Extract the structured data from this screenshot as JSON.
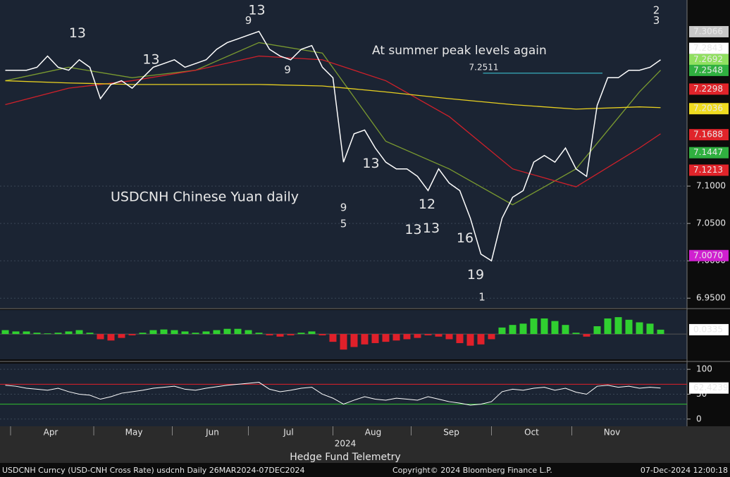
{
  "chart_data": [
    {
      "type": "line",
      "caption": "USDCNH Chinese Yuan daily",
      "note": "At summer peak levels again",
      "xlim": [
        -0.5,
        64.5
      ],
      "ylim": [
        6.937,
        7.349
      ],
      "yticks": [
        {
          "value": 6.95,
          "label": "6.9500"
        },
        {
          "value": 7.0,
          "label": "7.0000"
        },
        {
          "value": 7.05,
          "label": "7.0500"
        },
        {
          "value": 7.1,
          "label": "7.1000"
        }
      ],
      "grid": true,
      "series": [
        {
          "color": "#ffffff",
          "x": [
            0,
            1,
            2,
            3,
            4,
            5,
            6,
            7,
            8,
            9,
            10,
            11,
            12,
            13,
            14,
            15,
            16,
            17,
            18,
            19,
            20,
            21,
            22,
            23,
            24,
            25,
            26,
            27,
            28,
            29,
            30,
            31,
            32,
            33,
            34,
            35,
            36,
            37,
            38,
            39,
            40,
            41,
            42,
            43,
            44,
            45,
            46,
            47,
            48,
            49,
            50,
            51,
            52,
            53,
            54,
            55,
            56,
            57,
            58,
            59,
            60,
            61,
            62
          ],
          "values": [
            7.255,
            7.255,
            7.255,
            7.259,
            7.274,
            7.259,
            7.255,
            7.269,
            7.259,
            7.217,
            7.236,
            7.241,
            7.231,
            7.245,
            7.259,
            7.264,
            7.269,
            7.259,
            7.264,
            7.269,
            7.283,
            7.292,
            7.297,
            7.302,
            7.307,
            7.283,
            7.274,
            7.269,
            7.283,
            7.288,
            7.259,
            7.245,
            7.132,
            7.17,
            7.175,
            7.151,
            7.132,
            7.123,
            7.123,
            7.113,
            7.094,
            7.123,
            7.104,
            7.094,
            7.057,
            7.009,
            7.0,
            7.057,
            7.085,
            7.094,
            7.132,
            7.141,
            7.132,
            7.151,
            7.123,
            7.113,
            7.208,
            7.245,
            7.245,
            7.255,
            7.255,
            7.259,
            7.269
          ]
        },
        {
          "color": "#e8d020",
          "x": [
            0,
            6,
            12,
            18,
            24,
            30,
            36,
            42,
            48,
            54,
            60,
            62
          ],
          "values": [
            7.241,
            7.238,
            7.236,
            7.236,
            7.236,
            7.234,
            7.226,
            7.217,
            7.209,
            7.203,
            7.206,
            7.205
          ]
        },
        {
          "color": "#d0202a",
          "x": [
            0,
            6,
            12,
            18,
            24,
            30,
            36,
            42,
            48,
            54,
            60,
            62
          ],
          "values": [
            7.209,
            7.231,
            7.241,
            7.255,
            7.274,
            7.269,
            7.241,
            7.193,
            7.123,
            7.099,
            7.151,
            7.17
          ]
        },
        {
          "color": "#7a9a30",
          "x": [
            0,
            6,
            12,
            18,
            24,
            30,
            36,
            42,
            48,
            54,
            60,
            62
          ],
          "values": [
            7.241,
            7.259,
            7.245,
            7.255,
            7.292,
            7.278,
            7.16,
            7.123,
            7.075,
            7.123,
            7.226,
            7.255
          ]
        }
      ],
      "level": {
        "value": 7.2511,
        "label": "7.2511",
        "x": [
          45.2,
          56.5
        ],
        "color": "#40d0e0"
      },
      "badges": [
        {
          "value": 7.3066,
          "label": "7.3066",
          "color": "#c8c8c8"
        },
        {
          "value": 7.2843,
          "label": "7.2843",
          "color": "#ffffff"
        },
        {
          "value": 7.2692,
          "label": "7.2692",
          "color": "#90e060"
        },
        {
          "value": 7.2548,
          "label": "7.2548",
          "color": "#30b040"
        },
        {
          "value": 7.2298,
          "label": "7.2298",
          "color": "#e0242a"
        },
        {
          "value": 7.2036,
          "label": "7.2036",
          "color": "#f0dc20"
        },
        {
          "value": 7.1688,
          "label": "7.1688",
          "color": "#e0242a"
        },
        {
          "value": 7.1447,
          "label": "7.1447",
          "color": "#30b040"
        },
        {
          "value": 7.1213,
          "label": "7.1213",
          "color": "#e0242a"
        },
        {
          "value": 7.007,
          "label": "7.0070",
          "color": "#d020d0"
        }
      ],
      "counts": [
        {
          "text": "13",
          "x": 23.8,
          "y": 7.335,
          "color": "#d030d0"
        },
        {
          "text": "13",
          "x": 6.83,
          "y": 7.304,
          "color": "#f0902a"
        },
        {
          "text": "13",
          "x": 13.8,
          "y": 7.269,
          "color": "#e02020"
        },
        {
          "text": "9",
          "x": 23.0,
          "y": 7.321,
          "color": "#30d030"
        },
        {
          "text": "9",
          "x": 32.0,
          "y": 7.071,
          "color": "#30d030"
        },
        {
          "text": "5",
          "x": 32.0,
          "y": 7.049,
          "color": "#e02020"
        },
        {
          "text": "13",
          "x": 38.6,
          "y": 7.041,
          "color": "#d030d0"
        },
        {
          "text": "13",
          "x": 40.3,
          "y": 7.043,
          "color": "#f0902a"
        },
        {
          "text": "19",
          "x": 44.5,
          "y": 6.981,
          "color": "#d030d0"
        },
        {
          "text": "2",
          "x": 61.6,
          "y": 7.335,
          "color": "#f0dc20"
        },
        {
          "text": "3",
          "x": 61.6,
          "y": 7.321,
          "color": "#40d0e0"
        },
        {
          "text": "1",
          "x": 45.1,
          "y": 6.951,
          "color": "#f0dc20"
        },
        {
          "text": "9",
          "x": 26.7,
          "y": 7.255,
          "color": "#30d030"
        },
        {
          "text": "13",
          "x": 34.6,
          "y": 7.13,
          "color": "#f0902a"
        },
        {
          "text": "12",
          "x": 39.9,
          "y": 7.075,
          "color": "#e02020"
        },
        {
          "text": "16",
          "x": 43.5,
          "y": 7.03,
          "color": "#e02020"
        }
      ]
    },
    {
      "type": "bar",
      "xlim": [
        -0.5,
        64.5
      ],
      "ylim": [
        -0.195,
        0.185
      ],
      "positive_color": "#30d030",
      "negative_color": "#e0202a",
      "x": [
        0,
        1,
        2,
        3,
        4,
        5,
        6,
        7,
        8,
        9,
        10,
        11,
        12,
        13,
        14,
        15,
        16,
        17,
        18,
        19,
        20,
        21,
        22,
        23,
        24,
        25,
        26,
        27,
        28,
        29,
        30,
        31,
        32,
        33,
        34,
        35,
        36,
        37,
        38,
        39,
        40,
        41,
        42,
        43,
        44,
        45,
        46,
        47,
        48,
        49,
        50,
        51,
        52,
        53,
        54,
        55,
        56,
        57,
        58,
        59,
        60,
        61,
        62
      ],
      "values": [
        0.03,
        0.02,
        0.02,
        0.01,
        0.005,
        0.01,
        0.02,
        0.03,
        0.01,
        -0.04,
        -0.05,
        -0.03,
        -0.01,
        0.01,
        0.03,
        0.035,
        0.03,
        0.02,
        0.01,
        0.02,
        0.03,
        0.04,
        0.04,
        0.03,
        0.01,
        -0.01,
        -0.02,
        -0.01,
        0.01,
        0.02,
        -0.01,
        -0.06,
        -0.12,
        -0.1,
        -0.08,
        -0.07,
        -0.06,
        -0.05,
        -0.04,
        -0.03,
        -0.01,
        -0.02,
        -0.04,
        -0.07,
        -0.09,
        -0.08,
        -0.04,
        0.05,
        0.07,
        0.08,
        0.12,
        0.12,
        0.1,
        0.07,
        0.01,
        -0.02,
        0.06,
        0.12,
        0.13,
        0.11,
        0.09,
        0.08,
        0.0335
      ]
    },
    {
      "type": "line",
      "xlim": [
        -0.5,
        64.5
      ],
      "ylim": [
        -14.5,
        111.6
      ],
      "yticks": [
        0,
        50,
        100
      ],
      "bands": [
        {
          "value": 70,
          "color": "#e0202a"
        },
        {
          "value": 30,
          "color": "#30c030"
        }
      ],
      "xticks": [
        {
          "value": 4.3,
          "label": "Apr"
        },
        {
          "value": 12.17,
          "label": "May"
        },
        {
          "value": 19.6,
          "label": "Jun"
        },
        {
          "value": 26.8,
          "label": "Jul"
        },
        {
          "value": 34.8,
          "label": "Aug"
        },
        {
          "value": 42.2,
          "label": "Sep"
        },
        {
          "value": 49.8,
          "label": "Oct"
        },
        {
          "value": 57.4,
          "label": "Nov"
        }
      ],
      "year": "2024",
      "color": "#ffffff",
      "x": [
        0,
        1,
        2,
        3,
        4,
        5,
        6,
        7,
        8,
        9,
        10,
        11,
        12,
        13,
        14,
        15,
        16,
        17,
        18,
        19,
        20,
        21,
        22,
        23,
        24,
        25,
        26,
        27,
        28,
        29,
        30,
        31,
        32,
        33,
        34,
        35,
        36,
        37,
        38,
        39,
        40,
        41,
        42,
        43,
        44,
        45,
        46,
        47,
        48,
        49,
        50,
        51,
        52,
        53,
        54,
        55,
        56,
        57,
        58,
        59,
        60,
        61,
        62
      ],
      "values": [
        68,
        66,
        62,
        60,
        58,
        62,
        55,
        50,
        48,
        40,
        45,
        52,
        55,
        58,
        62,
        64,
        66,
        60,
        58,
        62,
        65,
        68,
        70,
        72,
        74,
        60,
        55,
        58,
        62,
        64,
        50,
        42,
        30,
        38,
        45,
        40,
        38,
        42,
        40,
        38,
        45,
        40,
        35,
        32,
        28,
        30,
        35,
        55,
        60,
        58,
        62,
        64,
        58,
        62,
        54,
        50,
        66,
        68,
        64,
        66,
        62,
        64,
        62.4239
      ]
    }
  ],
  "footer": {
    "brand": "Hedge Fund Telemetry",
    "ticker": "USDCNH Curncy (USD-CNH Cross Rate) usdcnh  Daily 26MAR2024-07DEC2024",
    "copyright": "Copyright© 2024 Bloomberg Finance L.P.",
    "timestamp": "07-Dec-2024 12:00:18"
  }
}
